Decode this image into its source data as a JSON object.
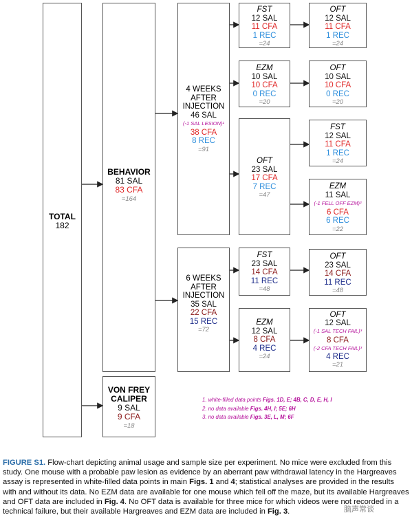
{
  "total": {
    "label": "TOTAL",
    "n": "182"
  },
  "behavior": {
    "label": "BEHAVIOR",
    "sal": "81 SAL",
    "cfa": "83 CFA",
    "n": "=164"
  },
  "vonfrey": {
    "line1": "VON FREY",
    "line2": "CALIPER",
    "sal": "9 SAL",
    "cfa": "9 CFA",
    "n": "=18"
  },
  "w4": {
    "l1": "4 WEEKS",
    "l2": "AFTER",
    "l3": "INJECTION",
    "sal": "46 SAL",
    "note": "(-1 SAL LESION)¹",
    "cfa": "38 CFA",
    "rec": "8 REC",
    "n": "=91"
  },
  "w6": {
    "l1": "6 WEEKS",
    "l2": "AFTER",
    "l3": "INJECTION",
    "sal": "35 SAL",
    "cfa": "22 CFA",
    "rec": "15 REC",
    "n": "=72"
  },
  "w4_fst": {
    "title": "FST",
    "sal": "12 SAL",
    "cfa": "11 CFA",
    "rec": "1 REC",
    "n": "=24"
  },
  "w4_fst_oft": {
    "title": "OFT",
    "sal": "12 SAL",
    "cfa": "11 CFA",
    "rec": "1 REC",
    "n": "=24"
  },
  "w4_ezm": {
    "title": "EZM",
    "sal": "10 SAL",
    "cfa": "10 CFA",
    "rec": "0 REC",
    "n": "=20"
  },
  "w4_ezm_oft": {
    "title": "OFT",
    "sal": "10 SAL",
    "cfa": "10 CFA",
    "rec": "0 REC",
    "n": "=20"
  },
  "w4_oft": {
    "title": "OFT",
    "sal": "23 SAL",
    "cfa": "17 CFA",
    "rec": "7 REC",
    "n": "=47"
  },
  "w4_oft_fst": {
    "title": "FST",
    "sal": "12 SAL",
    "cfa": "11 CFA",
    "rec": "1 REC",
    "n": "=24"
  },
  "w4_oft_ezm": {
    "title": "EZM",
    "sal": "11 SAL",
    "note": "(-1 FELL OFF EZM)²",
    "cfa": "6 CFA",
    "rec": "6 REC",
    "n": "=22"
  },
  "w6_fst": {
    "title": "FST",
    "sal": "23 SAL",
    "cfa": "14 CFA",
    "rec": "11 REC",
    "n": "=48"
  },
  "w6_fst_oft": {
    "title": "OFT",
    "sal": "23 SAL",
    "cfa": "14 CFA",
    "rec": "11 REC",
    "n": "=48"
  },
  "w6_ezm": {
    "title": "EZM",
    "sal": "12 SAL",
    "cfa": "8 CFA",
    "rec": "4 REC",
    "n": "=24"
  },
  "w6_ezm_oft": {
    "title": "OFT",
    "sal": "12 SAL",
    "note1": "(-1 SAL TECH FAIL)³",
    "cfa": "8 CFA",
    "note2": "(-2 CFA TECH FAIL)³",
    "rec": "4 REC",
    "n": "=21"
  },
  "footnotes": {
    "f1_prefix": "1. white-filled data points ",
    "f1_bold": "Figs. 1D, E; 4B, C, D, E, H, I",
    "f2_prefix": "2. no data available ",
    "f2_bold": "Figs. 4H, I; 5E; 6H",
    "f3_prefix": "3. no data available ",
    "f3_bold": "Figs. 3E, L, M; 6F"
  },
  "caption": {
    "lead": "FIGURE S1.",
    "p1": " Flow-chart depicting animal usage and sample size per experiment. No mice were excluded from this study. One mouse with a probable paw lesion as evidence by an aberrant paw withdrawal latency in the Hargreaves assay is represented in white-filled data points in main ",
    "b1": "Figs. 1",
    "p2": " and ",
    "b2": "4",
    "p3": "; statistical analyses are provided in the results with and without its data. No EZM data are available for one mouse which fell off the maze, but its available Hargreaves and OFT data are included in ",
    "b3": "Fig. 4",
    "p4": ". No OFT data is available for three mice for which videos were not recorded in a technical failure, but their available Hargreaves and EZM data are included in ",
    "b4": "Fig. 3",
    "p5": "."
  },
  "watermark": "脑声常谈"
}
